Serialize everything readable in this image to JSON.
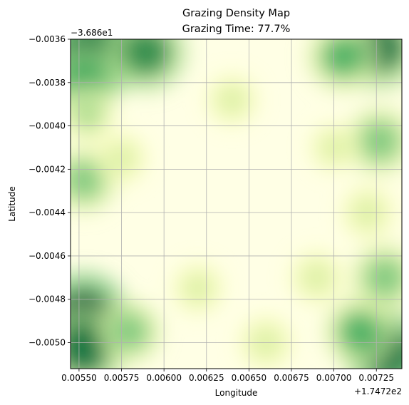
{
  "chart_data": {
    "type": "heatmap",
    "title": "Grazing Density Map",
    "subtitle": "Grazing Time: 77.7%",
    "xlabel": "Longitude",
    "ylabel": "Latitude",
    "x_offset_label": "+1.7472e2",
    "y_offset_label": "−3.686e1",
    "xlim": [
      0.00545,
      0.0074
    ],
    "ylim": [
      -0.00512,
      -0.0036
    ],
    "x_ticks": [
      0.0055,
      0.00575,
      0.006,
      0.00625,
      0.0065,
      0.00675,
      0.007,
      0.00725
    ],
    "x_tick_labels": [
      "0.00550",
      "0.00575",
      "0.00600",
      "0.00625",
      "0.00650",
      "0.00675",
      "0.00700",
      "0.00725"
    ],
    "y_ticks": [
      -0.0036,
      -0.0038,
      -0.004,
      -0.0042,
      -0.0044,
      -0.0046,
      -0.0048,
      -0.005
    ],
    "y_tick_labels": [
      "−0.0036",
      "−0.0038",
      "−0.0040",
      "−0.0042",
      "−0.0044",
      "−0.0046",
      "−0.0048",
      "−0.0050"
    ],
    "grid": true,
    "colormap": [
      "#ffffe5",
      "#f7fcb9",
      "#d9f0a3",
      "#addd8e",
      "#78c679",
      "#41ab5d",
      "#238443",
      "#006837",
      "#004529"
    ],
    "hotspots": [
      {
        "x": 0.00565,
        "y": -0.00364,
        "density": 0.95
      },
      {
        "x": 0.00553,
        "y": -0.00368,
        "density": 0.9
      },
      {
        "x": 0.0059,
        "y": -0.00366,
        "density": 0.75
      },
      {
        "x": 0.00553,
        "y": -0.0038,
        "density": 0.65
      },
      {
        "x": 0.00555,
        "y": -0.00395,
        "density": 0.35
      },
      {
        "x": 0.00553,
        "y": -0.00425,
        "density": 0.5
      },
      {
        "x": 0.00575,
        "y": -0.00415,
        "density": 0.25
      },
      {
        "x": 0.0064,
        "y": -0.00388,
        "density": 0.25
      },
      {
        "x": 0.00727,
        "y": -0.00364,
        "density": 0.85
      },
      {
        "x": 0.00705,
        "y": -0.00368,
        "density": 0.6
      },
      {
        "x": 0.00727,
        "y": -0.00407,
        "density": 0.55
      },
      {
        "x": 0.0072,
        "y": -0.0044,
        "density": 0.3
      },
      {
        "x": 0.0073,
        "y": -0.0047,
        "density": 0.55
      },
      {
        "x": 0.00732,
        "y": -0.00505,
        "density": 0.9
      },
      {
        "x": 0.00715,
        "y": -0.00495,
        "density": 0.6
      },
      {
        "x": 0.00553,
        "y": -0.00488,
        "density": 0.95
      },
      {
        "x": 0.00553,
        "y": -0.00503,
        "density": 0.85
      },
      {
        "x": 0.0058,
        "y": -0.00495,
        "density": 0.45
      },
      {
        "x": 0.0066,
        "y": -0.005,
        "density": 0.3
      },
      {
        "x": 0.0069,
        "y": -0.0047,
        "density": 0.3
      },
      {
        "x": 0.0062,
        "y": -0.00475,
        "density": 0.25
      },
      {
        "x": 0.007,
        "y": -0.0041,
        "density": 0.2
      }
    ]
  }
}
